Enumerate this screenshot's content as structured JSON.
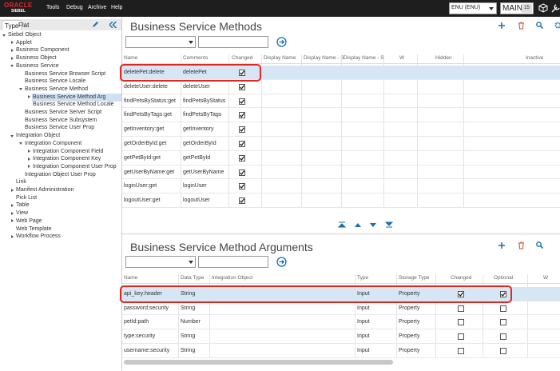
{
  "header": {
    "logo": "ORACLE",
    "logo_sub": "SIEBEL",
    "menu": [
      "Tools",
      "Debug",
      "Archive",
      "Help"
    ],
    "language": "ENU (ENU)",
    "workspace": "MAIN",
    "workspace_version": "15"
  },
  "sidebar": {
    "tabs": [
      "Type",
      "Flat"
    ],
    "tree": [
      {
        "label": "Siebel Object",
        "children": [
          {
            "label": "Applet",
            "collapsed": true
          },
          {
            "label": "Business Component",
            "collapsed": true
          },
          {
            "label": "Business Object",
            "collapsed": true
          },
          {
            "label": "Business Service",
            "children": [
              {
                "label": "Business Service Browser Script"
              },
              {
                "label": "Business Service Locale"
              },
              {
                "label": "Business Service Method",
                "children": [
                  {
                    "label": "Business Service Method Arg",
                    "collapsed": true,
                    "selected": true
                  },
                  {
                    "label": "Business Service Method Locale"
                  }
                ]
              },
              {
                "label": "Business Service Server Script"
              },
              {
                "label": "Business Service Subsystem"
              },
              {
                "label": "Business Service User Prop"
              }
            ]
          },
          {
            "label": "Integration Object",
            "children": [
              {
                "label": "Integration Component",
                "children": [
                  {
                    "label": "Integration Component Field",
                    "collapsed": true
                  },
                  {
                    "label": "Integration Component Key",
                    "collapsed": true
                  },
                  {
                    "label": "Integration Component User Prop",
                    "collapsed": true
                  }
                ]
              },
              {
                "label": "Integration Object User Prop"
              }
            ]
          },
          {
            "label": "Link"
          },
          {
            "label": "Manifest Administration",
            "collapsed": true
          },
          {
            "label": "Pick List"
          },
          {
            "label": "Table",
            "collapsed": true
          },
          {
            "label": "View",
            "collapsed": true
          },
          {
            "label": "Web Page",
            "collapsed": true
          },
          {
            "label": "Web Template"
          },
          {
            "label": "Workflow Process",
            "collapsed": true
          }
        ]
      }
    ]
  },
  "methods": {
    "title": "Business Service Methods",
    "columns": [
      "Name",
      "Comments",
      "Changed",
      "Display Name",
      "Display Name - S",
      "Display Name - S",
      "W",
      "Hidden",
      "Inactive"
    ],
    "selected_row": 0,
    "rows": [
      [
        "deletePet:delete",
        "deletePet",
        true
      ],
      [
        "deleteUser:delete",
        "deleteUser",
        true
      ],
      [
        "findPetsByStatus:get",
        "findPetsByStatus",
        true
      ],
      [
        "findPetsByTags:get",
        "findPetsByTags",
        true
      ],
      [
        "getInventory:get",
        "getInventory",
        true
      ],
      [
        "getOrderById:get",
        "getOrderById",
        true
      ],
      [
        "getPetById:get",
        "getPetById",
        true
      ],
      [
        "getUserByName:get",
        "getUserByName",
        true
      ],
      [
        "loginUser:get",
        "loginUser",
        true
      ],
      [
        "logoutUser:get",
        "logoutUser",
        true
      ]
    ]
  },
  "arguments": {
    "title": "Business Service Method Arguments",
    "columns": [
      "Name",
      "Data Type",
      "Integration Object",
      "Type",
      "Storage Type",
      "Changed",
      "Optional",
      "W"
    ],
    "selected_row": 0,
    "rows": [
      [
        "api_key:header",
        "String",
        null,
        "Input",
        "Property",
        true,
        true
      ],
      [
        "password:security",
        "String",
        null,
        "Input",
        "Property",
        false,
        false
      ],
      [
        "petId:path",
        "Number",
        null,
        "Input",
        "Property",
        false,
        false
      ],
      [
        "type:security",
        "String",
        null,
        "Input",
        "Property",
        false,
        false
      ],
      [
        "username:security",
        "String",
        null,
        "Input",
        "Property",
        false,
        false
      ]
    ]
  }
}
